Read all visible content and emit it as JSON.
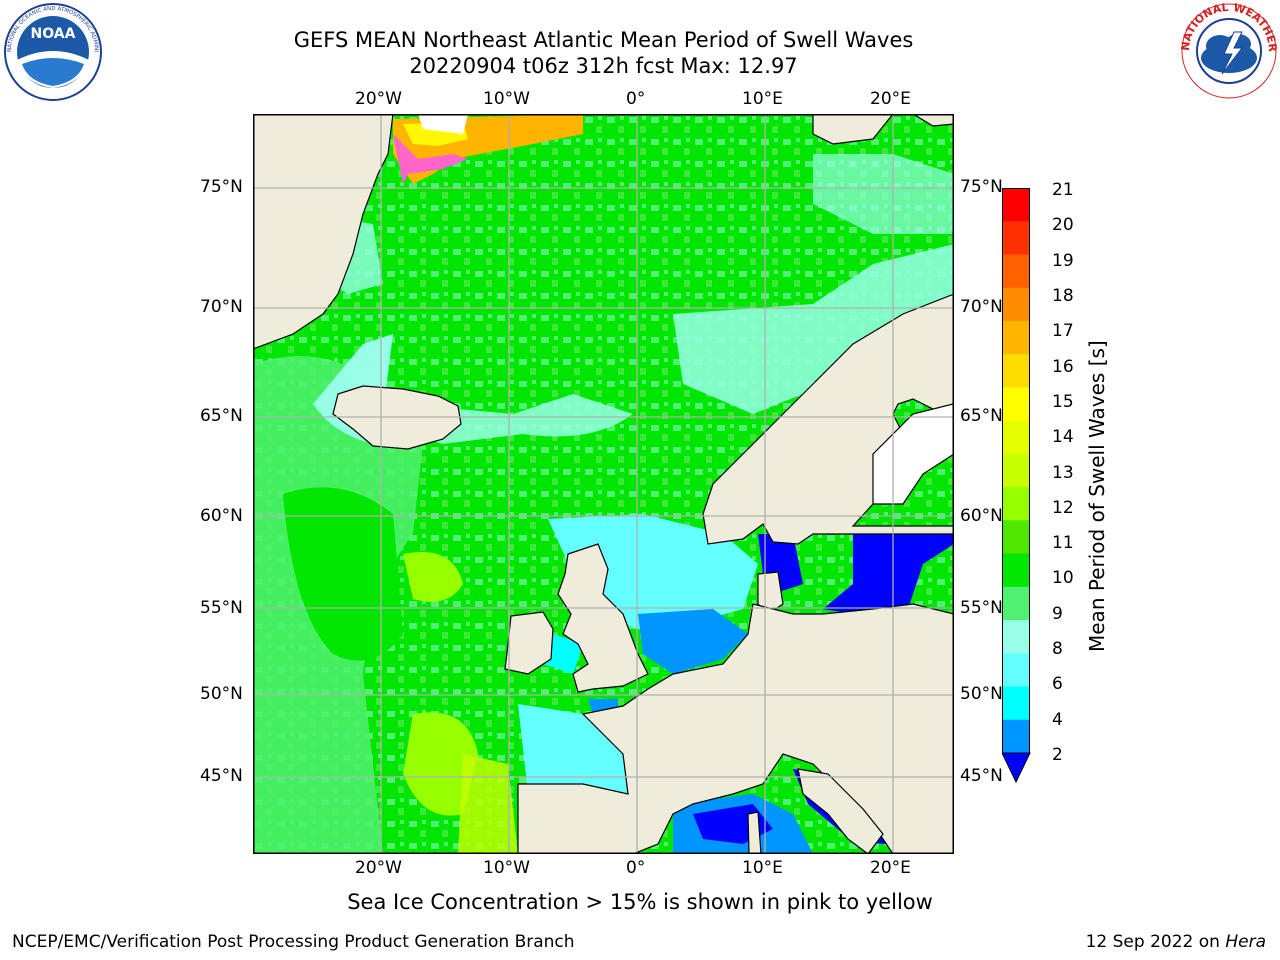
{
  "title": {
    "line1": "GEFS MEAN Northeast Atlantic Mean Period of Swell Waves",
    "line2": "20220904 t06z 312h fcst   Max: 12.97"
  },
  "logos": {
    "left": {
      "name": "noaa-logo",
      "text": "NOAA",
      "ring_text": "NATIONAL OCEANIC AND ATMOSPHERIC ADMINISTRATION · U.S. DEPARTMENT OF COMMERCE"
    },
    "right": {
      "name": "nws-logo",
      "ring_text": "NATIONAL WEATHER SERVICE"
    }
  },
  "map": {
    "lon_ticks": [
      "20°W",
      "10°W",
      "0°",
      "10°E",
      "20°E"
    ],
    "lat_ticks": [
      "75°N",
      "70°N",
      "65°N",
      "60°N",
      "55°N",
      "50°N",
      "45°N"
    ],
    "colors": {
      "land": "#efecdc",
      "frame": "#000000",
      "grid": "#b0b0b0"
    }
  },
  "colorbar": {
    "title": "Mean Period of Swell Waves [s]",
    "ticks": [
      "21",
      "20",
      "19",
      "18",
      "17",
      "16",
      "15",
      "14",
      "13",
      "12",
      "11",
      "10",
      "9",
      "8",
      "6",
      "4",
      "2"
    ],
    "colors": [
      "#ff0000",
      "#ff3000",
      "#ff6000",
      "#ff8c00",
      "#ffb400",
      "#ffdc00",
      "#ffff00",
      "#e6ff00",
      "#c8ff00",
      "#96ff00",
      "#50e600",
      "#00e600",
      "#50f070",
      "#96ffe6",
      "#64ffff",
      "#00ffff",
      "#0096ff",
      "#0000ff"
    ]
  },
  "caption": "Sea Ice Concentration > 15% is shown in pink to yellow",
  "footer": {
    "left": "NCEP/EMC/Verification Post Processing Product Generation Branch",
    "right_date": "12 Sep 2022 on ",
    "right_host": "Hera"
  }
}
